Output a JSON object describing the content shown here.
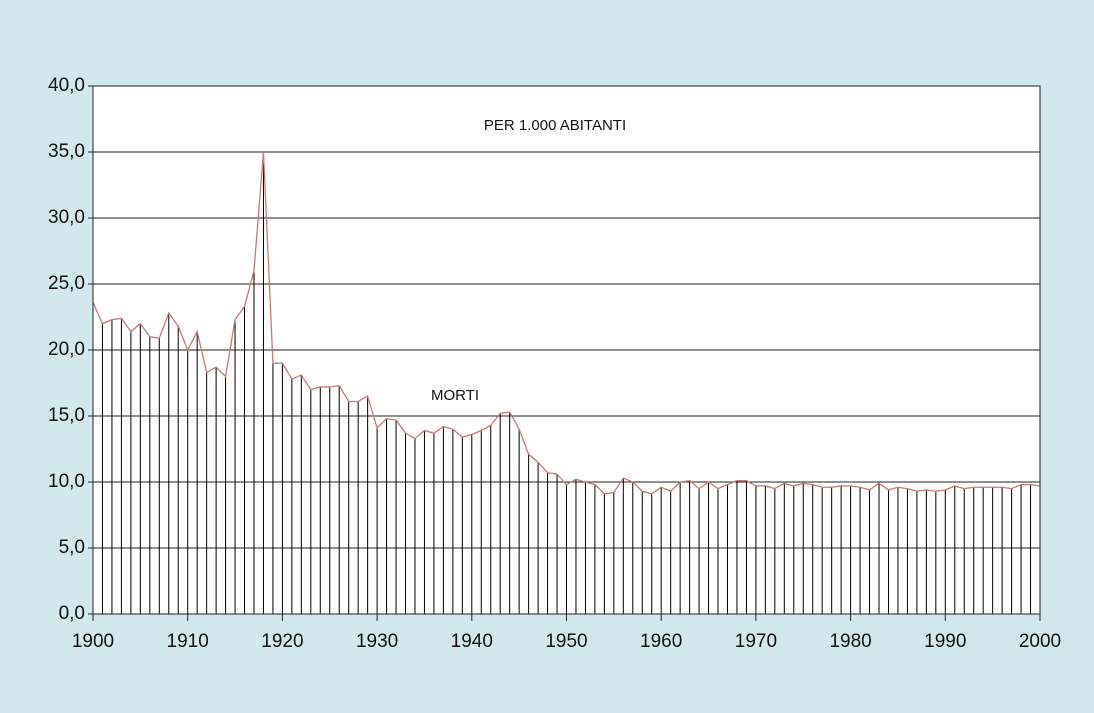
{
  "chart_data": {
    "type": "line",
    "annotations": [
      "PER 1.000 ABITANTI",
      "MORTI"
    ],
    "x": [
      1900,
      1901,
      1902,
      1903,
      1904,
      1905,
      1906,
      1907,
      1908,
      1909,
      1910,
      1911,
      1912,
      1913,
      1914,
      1915,
      1916,
      1917,
      1918,
      1919,
      1920,
      1921,
      1922,
      1923,
      1924,
      1925,
      1926,
      1927,
      1928,
      1929,
      1930,
      1931,
      1932,
      1933,
      1934,
      1935,
      1936,
      1937,
      1938,
      1939,
      1940,
      1941,
      1942,
      1943,
      1944,
      1945,
      1946,
      1947,
      1948,
      1949,
      1950,
      1951,
      1952,
      1953,
      1954,
      1955,
      1956,
      1957,
      1958,
      1959,
      1960,
      1961,
      1962,
      1963,
      1964,
      1965,
      1966,
      1967,
      1968,
      1969,
      1970,
      1971,
      1972,
      1973,
      1974,
      1975,
      1976,
      1977,
      1978,
      1979,
      1980,
      1981,
      1982,
      1983,
      1984,
      1985,
      1986,
      1987,
      1988,
      1989,
      1990,
      1991,
      1992,
      1993,
      1994,
      1995,
      1996,
      1997,
      1998,
      1999,
      2000
    ],
    "values": [
      23.6,
      22.0,
      22.3,
      22.4,
      21.4,
      22.0,
      21.0,
      20.9,
      22.8,
      21.8,
      20.0,
      21.4,
      18.3,
      18.7,
      18.0,
      22.3,
      23.3,
      26.0,
      35.0,
      19.0,
      19.0,
      17.8,
      18.1,
      17.0,
      17.2,
      17.2,
      17.3,
      16.1,
      16.1,
      16.5,
      14.1,
      14.8,
      14.7,
      13.7,
      13.3,
      13.9,
      13.7,
      14.2,
      14.0,
      13.4,
      13.6,
      13.9,
      14.3,
      15.2,
      15.3,
      14.0,
      12.1,
      11.5,
      10.7,
      10.6,
      9.8,
      10.2,
      10.0,
      9.8,
      9.1,
      9.2,
      10.3,
      10.0,
      9.3,
      9.1,
      9.6,
      9.3,
      10.0,
      10.1,
      9.5,
      10.0,
      9.5,
      9.8,
      10.1,
      10.1,
      9.7,
      9.7,
      9.5,
      9.9,
      9.7,
      9.9,
      9.8,
      9.6,
      9.6,
      9.7,
      9.7,
      9.6,
      9.4,
      9.9,
      9.4,
      9.6,
      9.5,
      9.3,
      9.4,
      9.3,
      9.4,
      9.7,
      9.5,
      9.6,
      9.6,
      9.6,
      9.6,
      9.5,
      9.8,
      9.8,
      9.7
    ],
    "color": "#c87878",
    "drop_line_color": "#000000",
    "xlim": [
      1900,
      2000
    ],
    "xticks": [
      1900,
      1910,
      1920,
      1930,
      1940,
      1950,
      1960,
      1970,
      1980,
      1990,
      2000
    ],
    "ylim": [
      0,
      40
    ],
    "yticks": [
      {
        "value": 0,
        "label": "0,0"
      },
      {
        "value": 5,
        "label": "5,0"
      },
      {
        "value": 10,
        "label": "10,0"
      },
      {
        "value": 15,
        "label": "15,0"
      },
      {
        "value": 20,
        "label": "20,0"
      },
      {
        "value": 25,
        "label": "25,0"
      },
      {
        "value": 30,
        "label": "30,0"
      },
      {
        "value": 35,
        "label": "35,0"
      },
      {
        "value": 40,
        "label": "40,0"
      }
    ],
    "grid": true
  }
}
